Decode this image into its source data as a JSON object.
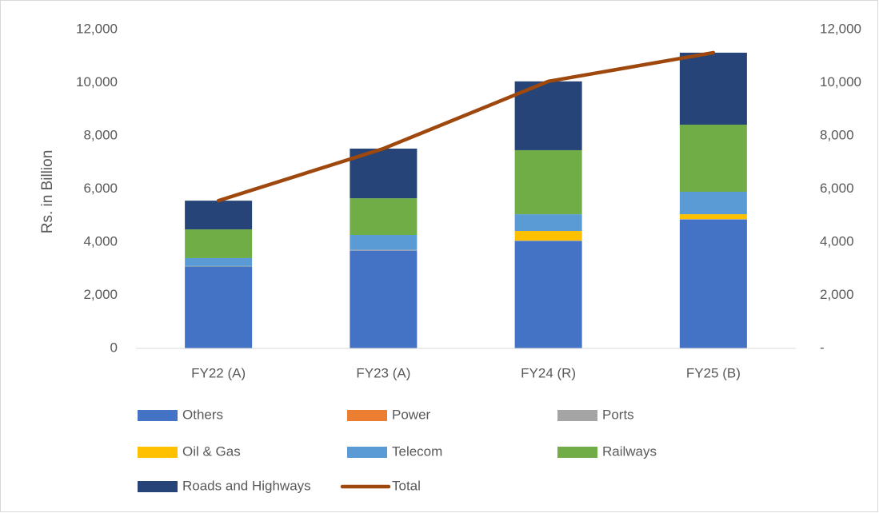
{
  "chart_data": {
    "type": "bar",
    "stacked": true,
    "y_label": "Rs. in Billion",
    "categories": [
      "FY22 (A)",
      "FY23 (A)",
      "FY24 (R)",
      "FY25 (B)"
    ],
    "series": [
      {
        "name": "Others",
        "color": "#4472c4",
        "values": [
          3080,
          3680,
          4040,
          4850
        ]
      },
      {
        "name": "Power",
        "color": "#ed7d31",
        "values": [
          0,
          0,
          0,
          0
        ]
      },
      {
        "name": "Ports",
        "color": "#a5a5a5",
        "values": [
          20,
          30,
          20,
          20
        ]
      },
      {
        "name": "Oil & Gas",
        "color": "#ffc000",
        "values": [
          0,
          0,
          360,
          180
        ]
      },
      {
        "name": "Telecom",
        "color": "#5b9bd5",
        "values": [
          300,
          560,
          630,
          845
        ]
      },
      {
        "name": "Railways",
        "color": "#70ad47",
        "values": [
          1080,
          1380,
          2410,
          2525
        ]
      },
      {
        "name": "Roads and Highways",
        "color": "#264478",
        "values": [
          1080,
          1870,
          2590,
          2710
        ]
      },
      {
        "name": "Total",
        "color": "#9e480e",
        "type": "line",
        "axis": "y2",
        "values": [
          5560,
          7520,
          10050,
          11130
        ]
      }
    ],
    "ylim": [
      0,
      12000
    ],
    "yticks": [
      0,
      {
        "value": 2000,
        "label": "2,000"
      },
      {
        "value": 4000,
        "label": "4,000"
      },
      {
        "value": 6000,
        "label": "6,000"
      },
      {
        "value": 8000,
        "label": "8,000"
      },
      {
        "value": 10000,
        "label": "10,000"
      },
      {
        "value": 12000,
        "label": "12,000"
      }
    ],
    "y2lim": [
      0,
      12000
    ],
    "y2ticks": [
      {
        "value": 0,
        "label": "-"
      },
      {
        "value": 2000,
        "label": "2,000"
      },
      {
        "value": 4000,
        "label": "4,000"
      },
      {
        "value": 6000,
        "label": "6,000"
      },
      {
        "value": 8000,
        "label": "8,000"
      },
      {
        "value": 10000,
        "label": "10,000"
      },
      {
        "value": 12000,
        "label": "12,000"
      }
    ],
    "grid": false,
    "legend": "bottom"
  }
}
